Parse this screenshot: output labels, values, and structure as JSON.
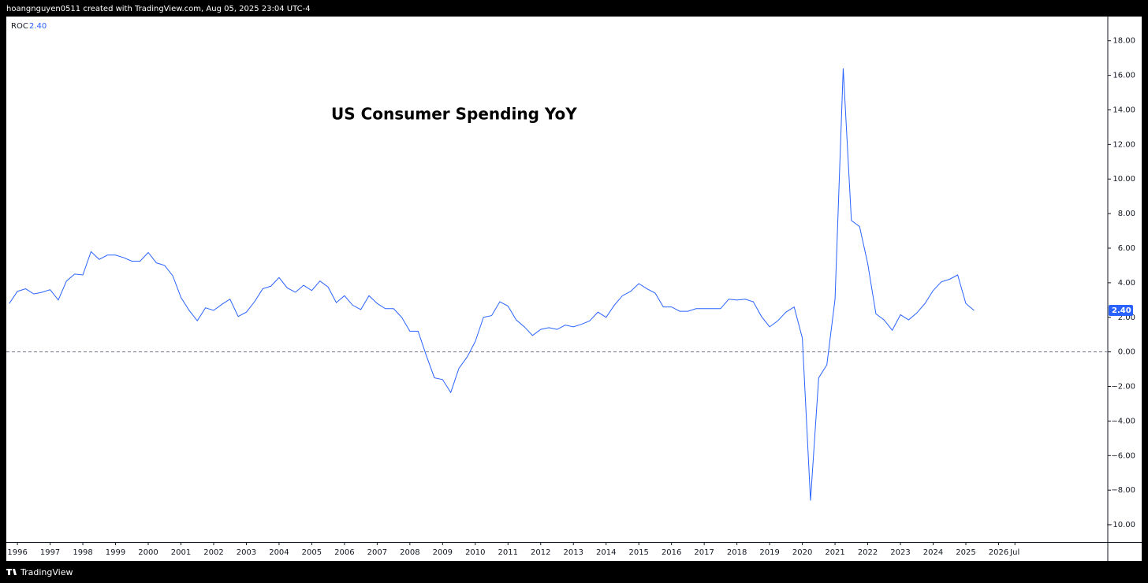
{
  "header": {
    "text": "hoangnguyen0511 created with TradingView.com, Aug 05, 2025 23:04 UTC-4"
  },
  "footer": {
    "brand": "TradingView"
  },
  "chart_data": {
    "type": "line",
    "annotation": "US Consumer Spending YoY",
    "x": [
      1995.75,
      1996,
      1996.25,
      1996.5,
      1996.75,
      1997,
      1997.25,
      1997.5,
      1997.75,
      1998,
      1998.25,
      1998.5,
      1998.75,
      1999,
      1999.25,
      1999.5,
      1999.75,
      2000,
      2000.25,
      2000.5,
      2000.75,
      2001,
      2001.25,
      2001.5,
      2001.75,
      2002,
      2002.25,
      2002.5,
      2002.75,
      2003,
      2003.25,
      2003.5,
      2003.75,
      2004,
      2004.25,
      2004.5,
      2004.75,
      2005,
      2005.25,
      2005.5,
      2005.75,
      2006,
      2006.25,
      2006.5,
      2006.75,
      2007,
      2007.25,
      2007.5,
      2007.75,
      2008,
      2008.25,
      2008.5,
      2008.75,
      2009,
      2009.25,
      2009.5,
      2009.75,
      2010,
      2010.25,
      2010.5,
      2010.75,
      2011,
      2011.25,
      2011.5,
      2011.75,
      2012,
      2012.25,
      2012.5,
      2012.75,
      2013,
      2013.25,
      2013.5,
      2013.75,
      2014,
      2014.25,
      2014.5,
      2014.75,
      2015,
      2015.25,
      2015.5,
      2015.75,
      2016,
      2016.25,
      2016.5,
      2016.75,
      2017,
      2017.25,
      2017.5,
      2017.75,
      2018,
      2018.25,
      2018.5,
      2018.75,
      2019,
      2019.25,
      2019.5,
      2019.75,
      2020,
      2020.25,
      2020.5,
      2020.75,
      2021,
      2021.25,
      2021.5,
      2021.75,
      2022,
      2022.25,
      2022.5,
      2022.75,
      2023,
      2023.25,
      2023.5,
      2023.75,
      2024,
      2024.25,
      2024.5,
      2024.75,
      2025,
      2025.25
    ],
    "series": [
      {
        "name": "ROC",
        "color": "#2962ff",
        "last_label": "2.40",
        "values": [
          2.8,
          3.5,
          3.65,
          3.35,
          3.45,
          3.6,
          3.0,
          4.1,
          4.5,
          4.45,
          5.8,
          5.35,
          5.6,
          5.6,
          5.45,
          5.25,
          5.25,
          5.75,
          5.15,
          5.0,
          4.4,
          3.15,
          2.4,
          1.8,
          2.55,
          2.4,
          2.75,
          3.05,
          2.05,
          2.3,
          2.9,
          3.65,
          3.8,
          4.3,
          3.7,
          3.45,
          3.85,
          3.55,
          4.1,
          3.75,
          2.85,
          3.25,
          2.7,
          2.45,
          3.25,
          2.8,
          2.5,
          2.5,
          2.0,
          1.2,
          1.2,
          -0.2,
          -1.5,
          -1.6,
          -2.35,
          -0.95,
          -0.3,
          0.6,
          2.0,
          2.1,
          2.9,
          2.65,
          1.85,
          1.45,
          0.95,
          1.3,
          1.4,
          1.3,
          1.55,
          1.45,
          1.6,
          1.8,
          2.3,
          2.0,
          2.7,
          3.25,
          3.5,
          3.95,
          3.65,
          3.4,
          2.6,
          2.6,
          2.35,
          2.35,
          2.5,
          2.5,
          2.5,
          2.5,
          3.05,
          3.0,
          3.05,
          2.9,
          2.05,
          1.45,
          1.8,
          2.3,
          2.6,
          0.8,
          -8.6,
          -1.5,
          -0.75,
          3.05,
          16.4,
          7.6,
          7.25,
          5.1,
          2.2,
          1.85,
          1.25,
          2.15,
          1.85,
          2.25,
          2.8,
          3.55,
          4.05,
          4.2,
          4.45,
          2.8,
          2.4
        ]
      }
    ],
    "reference_lines": [
      0
    ],
    "xlim": [
      1995.66,
      2029.34
    ],
    "xticks": [
      1996,
      1997,
      1998,
      1999,
      2000,
      2001,
      2002,
      2003,
      2004,
      2005,
      2006,
      2007,
      2008,
      2009,
      2010,
      2011,
      2012,
      2013,
      2014,
      2015,
      2016,
      2017,
      2018,
      2019,
      2020,
      2021,
      2022,
      2023,
      2024,
      2025,
      2026,
      {
        "value": 2026.5,
        "label": "Jul"
      }
    ],
    "ylim": [
      -11,
      19.4
    ],
    "yticks": [
      {
        "value": -10,
        "label": "−10.00"
      },
      {
        "value": -8,
        "label": "−8.00"
      },
      {
        "value": -6,
        "label": "−6.00"
      },
      {
        "value": -4,
        "label": "−4.00"
      },
      {
        "value": -2,
        "label": "−2.00"
      },
      {
        "value": 0,
        "label": "0.00"
      },
      {
        "value": 2,
        "label": "2.00"
      },
      {
        "value": 4,
        "label": "4.00"
      },
      {
        "value": 6,
        "label": "6.00"
      },
      {
        "value": 8,
        "label": "8.00"
      },
      {
        "value": 10,
        "label": "10.00"
      },
      {
        "value": 12,
        "label": "12.00"
      },
      {
        "value": 14,
        "label": "14.00"
      },
      {
        "value": 16,
        "label": "16.00"
      },
      {
        "value": 18,
        "label": "18.00"
      }
    ]
  }
}
